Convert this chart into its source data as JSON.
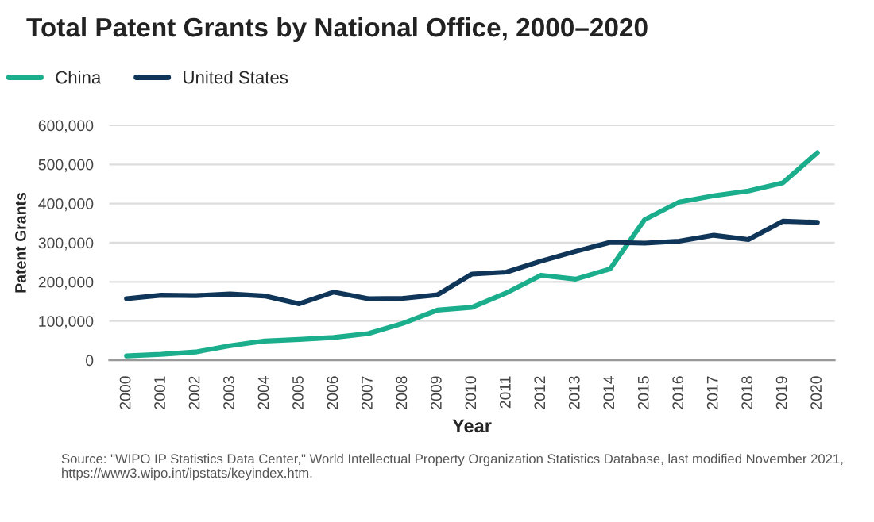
{
  "chart_data": {
    "type": "line",
    "title": "Total Patent Grants by National Office, 2000–2020",
    "xlabel": "Year",
    "ylabel": "Patent Grants",
    "categories": [
      "2000",
      "2001",
      "2002",
      "2003",
      "2004",
      "2005",
      "2006",
      "2007",
      "2008",
      "2009",
      "2010",
      "2011",
      "2012",
      "2013",
      "2014",
      "2015",
      "2016",
      "2017",
      "2018",
      "2019",
      "2020"
    ],
    "series": [
      {
        "name": "China",
        "color": "#1aae8c",
        "values": [
          11000,
          15000,
          21000,
          37000,
          49000,
          53000,
          58000,
          68000,
          94000,
          128000,
          135000,
          172000,
          217000,
          207000,
          233000,
          359000,
          404000,
          420000,
          432000,
          453000,
          530000
        ]
      },
      {
        "name": "United States",
        "color": "#0f3559",
        "values": [
          157000,
          166000,
          165000,
          169000,
          164000,
          144000,
          174000,
          157000,
          158000,
          167000,
          220000,
          225000,
          253000,
          278000,
          301000,
          299000,
          304000,
          319000,
          308000,
          355000,
          352000
        ]
      }
    ],
    "ylim": [
      0,
      600000
    ],
    "yticks": [
      {
        "value": 0,
        "label": "0"
      },
      {
        "value": 100000,
        "label": "100,000"
      },
      {
        "value": 200000,
        "label": "200,000"
      },
      {
        "value": 300000,
        "label": "300,000"
      },
      {
        "value": 400000,
        "label": "400,000"
      },
      {
        "value": 500000,
        "label": "500,000"
      },
      {
        "value": 600000,
        "label": "600,000"
      }
    ],
    "grid": "y",
    "legend": "top left",
    "marker": "none",
    "line_style": "solid",
    "annotations": [
      "Source: \"WIPO IP Statistics Data Center,\" World Intellectual Property Organization Statistics Database, last modified November 2021, https://www3.wipo.int/ipstats/keyindex.htm."
    ]
  }
}
